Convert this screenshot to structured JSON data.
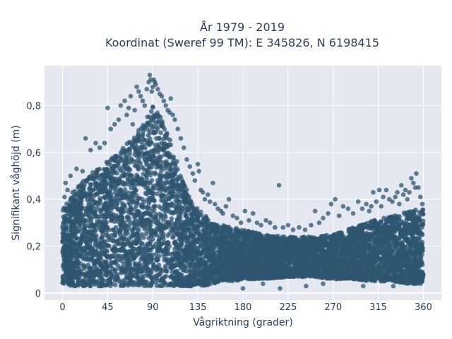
{
  "chart_data": {
    "type": "scatter",
    "title_line1": "År 1979 - 2019",
    "title_line2": "Koordinat (Sweref 99 TM): E 345826, N 6198415",
    "xlabel": "Vågriktning (grader)",
    "ylabel": "Signifikant våghöjd (m)",
    "xlim": [
      -18,
      378
    ],
    "ylim": [
      -0.03,
      0.97
    ],
    "xticks": [
      0,
      45,
      90,
      135,
      180,
      225,
      270,
      315,
      360
    ],
    "xtick_labels": [
      "0",
      "45",
      "90",
      "135",
      "180",
      "225",
      "270",
      "315",
      "360"
    ],
    "yticks": [
      0,
      0.2,
      0.4,
      0.6,
      0.8
    ],
    "ytick_labels": [
      "0",
      "0,2",
      "0,4",
      "0,6",
      "0,8"
    ],
    "grid": true,
    "marker_color": "#2d5570",
    "plot_background": "#e5e8f1",
    "envelope": {
      "description_of_distribution": "dense band of points for every direction 0-360 degrees",
      "x": [
        0,
        10,
        20,
        30,
        40,
        50,
        60,
        70,
        80,
        90,
        100,
        110,
        120,
        130,
        140,
        150,
        160,
        170,
        180,
        200,
        225,
        250,
        270,
        290,
        310,
        330,
        345,
        360
      ],
      "y_low": [
        0.04,
        0.03,
        0.03,
        0.03,
        0.03,
        0.03,
        0.03,
        0.03,
        0.03,
        0.03,
        0.03,
        0.03,
        0.03,
        0.03,
        0.03,
        0.04,
        0.05,
        0.05,
        0.06,
        0.06,
        0.07,
        0.07,
        0.06,
        0.06,
        0.05,
        0.05,
        0.04,
        0.04
      ],
      "y_high": [
        0.36,
        0.42,
        0.48,
        0.52,
        0.55,
        0.58,
        0.62,
        0.66,
        0.72,
        0.8,
        0.74,
        0.62,
        0.48,
        0.38,
        0.34,
        0.3,
        0.29,
        0.28,
        0.27,
        0.25,
        0.24,
        0.24,
        0.25,
        0.28,
        0.31,
        0.33,
        0.35,
        0.36
      ]
    },
    "outliers": [
      [
        2,
        0.41
      ],
      [
        3,
        0.47
      ],
      [
        5,
        0.44
      ],
      [
        8,
        0.5
      ],
      [
        10,
        0.43
      ],
      [
        14,
        0.53
      ],
      [
        20,
        0.52
      ],
      [
        23,
        0.66
      ],
      [
        28,
        0.61
      ],
      [
        33,
        0.64
      ],
      [
        37,
        0.62
      ],
      [
        42,
        0.64
      ],
      [
        45,
        0.79
      ],
      [
        48,
        0.7
      ],
      [
        52,
        0.72
      ],
      [
        56,
        0.74
      ],
      [
        58,
        0.8
      ],
      [
        62,
        0.82
      ],
      [
        64,
        0.76
      ],
      [
        66,
        0.79
      ],
      [
        68,
        0.84
      ],
      [
        70,
        0.72
      ],
      [
        72,
        0.78
      ],
      [
        74,
        0.88
      ],
      [
        76,
        0.86
      ],
      [
        78,
        0.84
      ],
      [
        80,
        0.82
      ],
      [
        82,
        0.8
      ],
      [
        84,
        0.87
      ],
      [
        86,
        0.9
      ],
      [
        87,
        0.93
      ],
      [
        88,
        0.91
      ],
      [
        89,
        0.86
      ],
      [
        90,
        0.88
      ],
      [
        91,
        0.91
      ],
      [
        92,
        0.9
      ],
      [
        93,
        0.89
      ],
      [
        95,
        0.87
      ],
      [
        97,
        0.85
      ],
      [
        99,
        0.84
      ],
      [
        101,
        0.82
      ],
      [
        103,
        0.8
      ],
      [
        105,
        0.78
      ],
      [
        107,
        0.77
      ],
      [
        108,
        0.83
      ],
      [
        110,
        0.76
      ],
      [
        112,
        0.74
      ],
      [
        115,
        0.7
      ],
      [
        118,
        0.66
      ],
      [
        121,
        0.62
      ],
      [
        124,
        0.57
      ],
      [
        127,
        0.54
      ],
      [
        130,
        0.51
      ],
      [
        132,
        0.48
      ],
      [
        135,
        0.55
      ],
      [
        136,
        0.52
      ],
      [
        138,
        0.44
      ],
      [
        140,
        0.43
      ],
      [
        142,
        0.4
      ],
      [
        145,
        0.42
      ],
      [
        147,
        0.39
      ],
      [
        150,
        0.47
      ],
      [
        152,
        0.38
      ],
      [
        155,
        0.36
      ],
      [
        158,
        0.35
      ],
      [
        160,
        0.34
      ],
      [
        163,
        0.37
      ],
      [
        166,
        0.4
      ],
      [
        170,
        0.33
      ],
      [
        174,
        0.32
      ],
      [
        178,
        0.3
      ],
      [
        182,
        0.35
      ],
      [
        186,
        0.31
      ],
      [
        190,
        0.34
      ],
      [
        194,
        0.3
      ],
      [
        198,
        0.29
      ],
      [
        203,
        0.31
      ],
      [
        207,
        0.3
      ],
      [
        212,
        0.28
      ],
      [
        216,
        0.46
      ],
      [
        220,
        0.28
      ],
      [
        225,
        0.29
      ],
      [
        230,
        0.27
      ],
      [
        236,
        0.28
      ],
      [
        242,
        0.27
      ],
      [
        248,
        0.29
      ],
      [
        252,
        0.35
      ],
      [
        256,
        0.3
      ],
      [
        260,
        0.32
      ],
      [
        265,
        0.34
      ],
      [
        268,
        0.38
      ],
      [
        272,
        0.4
      ],
      [
        276,
        0.33
      ],
      [
        280,
        0.37
      ],
      [
        285,
        0.36
      ],
      [
        290,
        0.34
      ],
      [
        295,
        0.39
      ],
      [
        299,
        0.36
      ],
      [
        303,
        0.38
      ],
      [
        306,
        0.35
      ],
      [
        308,
        0.37
      ],
      [
        310,
        0.43
      ],
      [
        313,
        0.39
      ],
      [
        316,
        0.44
      ],
      [
        318,
        0.37
      ],
      [
        320,
        0.41
      ],
      [
        323,
        0.44
      ],
      [
        326,
        0.4
      ],
      [
        329,
        0.39
      ],
      [
        332,
        0.41
      ],
      [
        334,
        0.43
      ],
      [
        336,
        0.38
      ],
      [
        338,
        0.46
      ],
      [
        340,
        0.42
      ],
      [
        342,
        0.44
      ],
      [
        344,
        0.4
      ],
      [
        346,
        0.43
      ],
      [
        348,
        0.49
      ],
      [
        350,
        0.47
      ],
      [
        352,
        0.45
      ],
      [
        353,
        0.51
      ],
      [
        355,
        0.45
      ],
      [
        357,
        0.41
      ],
      [
        359,
        0.38
      ],
      [
        217,
        0.02
      ],
      [
        180,
        0.02
      ],
      [
        243,
        0.03
      ],
      [
        260,
        0.04
      ],
      [
        200,
        0.04
      ],
      [
        300,
        0.03
      ],
      [
        330,
        0.03
      ]
    ]
  }
}
